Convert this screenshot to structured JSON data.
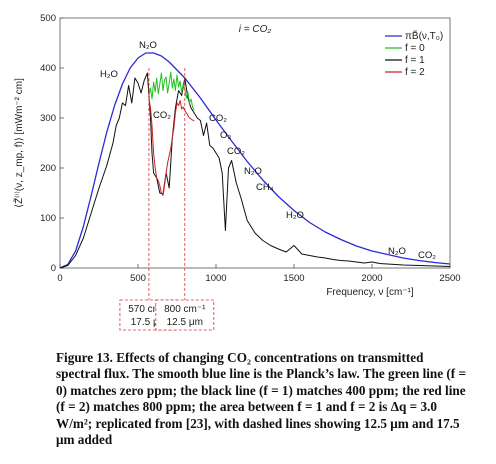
{
  "chart_data": {
    "type": "line",
    "title": "i = CO₂",
    "xlabel": "Frequency, ν [cm⁻¹]",
    "ylabel": "⟨Z̃⁽ⁱ⁾(ν, z_mp, f)⟩ [mWm⁻² cm]",
    "xlim": [
      0,
      2500
    ],
    "ylim": [
      0,
      500
    ],
    "x_ticks": [
      "0",
      "500",
      "1000",
      "1500",
      "2000",
      "2500"
    ],
    "y_ticks": [
      "0",
      "100",
      "200",
      "300",
      "400",
      "500"
    ],
    "grid": false,
    "legend_position": "top-right",
    "series": [
      {
        "name": "πB̃(ν,T₀)",
        "color": "#2b2bd6",
        "x": [
          0,
          50,
          100,
          150,
          200,
          250,
          300,
          350,
          400,
          450,
          500,
          550,
          600,
          650,
          700,
          750,
          800,
          850,
          900,
          950,
          1000,
          1100,
          1200,
          1300,
          1400,
          1500,
          1600,
          1700,
          1800,
          1900,
          2000,
          2100,
          2200,
          2300,
          2400,
          2500
        ],
        "y": [
          0,
          7,
          34,
          83,
          145,
          210,
          272,
          325,
          368,
          400,
          420,
          430,
          430,
          424,
          412,
          396,
          380,
          360,
          340,
          318,
          296,
          254,
          213,
          176,
          143,
          115,
          91,
          72,
          57,
          44,
          34,
          27,
          20,
          15,
          11,
          8
        ]
      },
      {
        "name": "f = 0",
        "color": "#22c022",
        "x": [
          570,
          580,
          590,
          600,
          610,
          620,
          630,
          640,
          650,
          660,
          670,
          680,
          690,
          700,
          710,
          720,
          730,
          740,
          750,
          760,
          770,
          780,
          790,
          800,
          810,
          820,
          830,
          840,
          850,
          860
        ],
        "y": [
          345,
          360,
          338,
          372,
          352,
          380,
          348,
          368,
          390,
          355,
          376,
          382,
          350,
          370,
          392,
          360,
          378,
          355,
          386,
          362,
          374,
          350,
          368,
          358,
          340,
          352,
          330,
          338,
          322,
          315
        ]
      },
      {
        "name": "f = 1",
        "color": "#111111",
        "x": [
          0,
          50,
          100,
          150,
          200,
          250,
          300,
          340,
          360,
          380,
          400,
          420,
          440,
          460,
          480,
          500,
          520,
          540,
          560,
          570,
          580,
          590,
          600,
          620,
          640,
          660,
          680,
          700,
          720,
          740,
          760,
          780,
          800,
          820,
          840,
          860,
          880,
          900,
          920,
          940,
          960,
          980,
          1000,
          1020,
          1040,
          1060,
          1080,
          1100,
          1130,
          1160,
          1200,
          1250,
          1300,
          1350,
          1400,
          1450,
          1500,
          1550,
          1600,
          1650,
          1700,
          1750,
          1800,
          1850,
          1900,
          1950,
          2000,
          2050,
          2100,
          2150,
          2200,
          2300,
          2400,
          2500
        ],
        "y": [
          0,
          5,
          25,
          60,
          110,
          160,
          205,
          250,
          285,
          300,
          330,
          325,
          365,
          330,
          380,
          370,
          350,
          375,
          390,
          345,
          300,
          230,
          190,
          180,
          150,
          148,
          190,
          160,
          260,
          320,
          355,
          345,
          380,
          340,
          320,
          310,
          300,
          295,
          265,
          290,
          245,
          240,
          230,
          220,
          190,
          75,
          200,
          215,
          170,
          140,
          95,
          70,
          55,
          45,
          38,
          32,
          45,
          28,
          25,
          22,
          20,
          17,
          15,
          14,
          12,
          10,
          12,
          9,
          8,
          7,
          6,
          5,
          4,
          3
        ]
      },
      {
        "name": "f = 2",
        "color": "#cc2222",
        "x": [
          570,
          580,
          590,
          600,
          610,
          620,
          630,
          640,
          650,
          660,
          670,
          680,
          690,
          700,
          710,
          720,
          730,
          740,
          750,
          760,
          770,
          780,
          790,
          800,
          810,
          820,
          830,
          840,
          850,
          860
        ],
        "y": [
          340,
          320,
          285,
          230,
          200,
          180,
          175,
          165,
          150,
          145,
          165,
          190,
          210,
          225,
          240,
          260,
          280,
          310,
          330,
          325,
          335,
          318,
          322,
          315,
          310,
          305,
          300,
          298,
          296,
          294
        ]
      }
    ],
    "annotations": [
      "N₂O",
      "H₂O",
      "CO₂",
      "CO₂",
      "O₃",
      "CO₂",
      "N₂O",
      "CH₄",
      "H₂O",
      "N₂O",
      "CO₂"
    ],
    "dashed_lines": [
      {
        "x": 570,
        "label_lines": [
          "570 cm⁻¹",
          "17.5 μm"
        ]
      },
      {
        "x": 800,
        "label_lines": [
          "800 cm⁻¹",
          "12.5 μm"
        ]
      }
    ]
  },
  "caption": "Figure 13. Effects of changing CO₂ concentrations on transmitted spectral flux. The smooth blue line is the Planck’s law. The green line (f = 0) matches zero ppm; the black line (f = 1) matches 400 ppm; the red line (f = 2) matches 800 ppm; the area between f = 1 and f = 2 is Δq = 3.0 W/m²; replicated from [23], with dashed lines showing 12.5 μm and 17.5 μm added"
}
